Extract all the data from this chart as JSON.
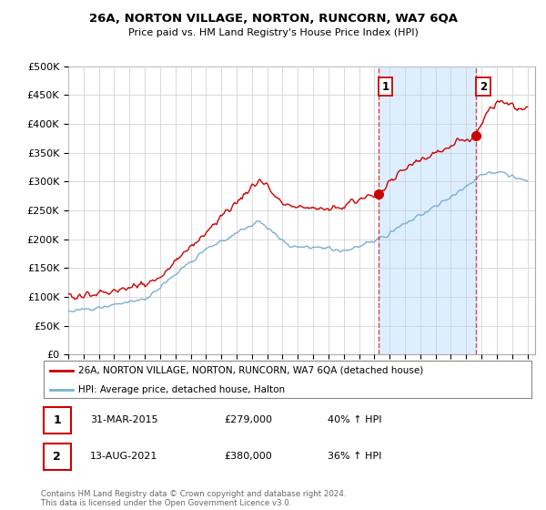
{
  "title": "26A, NORTON VILLAGE, NORTON, RUNCORN, WA7 6QA",
  "subtitle": "Price paid vs. HM Land Registry's House Price Index (HPI)",
  "red_label": "26A, NORTON VILLAGE, NORTON, RUNCORN, WA7 6QA (detached house)",
  "blue_label": "HPI: Average price, detached house, Halton",
  "annotation1_date": "31-MAR-2015",
  "annotation1_price": "£279,000",
  "annotation1_hpi": "40% ↑ HPI",
  "annotation2_date": "13-AUG-2021",
  "annotation2_price": "£380,000",
  "annotation2_hpi": "36% ↑ HPI",
  "footer": "Contains HM Land Registry data © Crown copyright and database right 2024.\nThis data is licensed under the Open Government Licence v3.0.",
  "ylim": [
    0,
    500000
  ],
  "yticks": [
    0,
    50000,
    100000,
    150000,
    200000,
    250000,
    300000,
    350000,
    400000,
    450000,
    500000
  ],
  "red_color": "#cc0000",
  "blue_color": "#7aafd4",
  "vline_color": "#cc0000",
  "shade_color": "#ddeeff",
  "point1_x": 2015.25,
  "point1_y": 279000,
  "point2_x": 2021.62,
  "point2_y": 380000,
  "xmin": 1995,
  "xmax": 2025.5
}
